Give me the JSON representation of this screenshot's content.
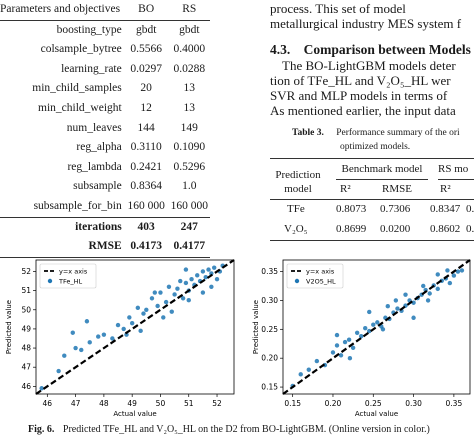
{
  "param_table": {
    "headers": [
      "Parameters and objectives",
      "BO",
      "RS"
    ],
    "rows": [
      [
        "boosting_type",
        "gbdt",
        "gbdt"
      ],
      [
        "colsample_bytree",
        "0.5566",
        "0.4000"
      ],
      [
        "learning_rate",
        "0.0297",
        "0.0288"
      ],
      [
        "min_child_samples",
        "20",
        "13"
      ],
      [
        "min_child_weight",
        "12",
        "13"
      ],
      [
        "num_leaves",
        "144",
        "149"
      ],
      [
        "reg_alpha",
        "0.3110",
        "0.1090"
      ],
      [
        "reg_lambda",
        "0.2421",
        "0.5296"
      ],
      [
        "subsample",
        "0.8364",
        "1.0"
      ],
      [
        "subsample_for_bin",
        "160 000",
        "160 000"
      ]
    ],
    "iterations": [
      "iterations",
      "403",
      "247"
    ],
    "rmse": [
      "RMSE",
      "0.4173",
      "0.4177"
    ]
  },
  "body_text": {
    "line1": "process. This set of model",
    "line2": "metallurgical industry MES system f",
    "section_num": "4.3.",
    "section_title": "Comparison between Models",
    "p1": "The BO-LightGBM models deter",
    "p2": "tion of TFe_HL and V₂O₅_HL wer",
    "p3": "SVR and MLP models in terms of",
    "p4": "As mentioned earlier, the input data"
  },
  "perf_table": {
    "label": "Table 3.",
    "caption1": "Performance summary of the ori",
    "caption2": "optimized models.",
    "col_model": "Prediction model",
    "group1": "Benchmark model",
    "group2": "RS mo",
    "sub1": "R²",
    "sub2": "RMSE",
    "sub3": "R²",
    "sub4": "RMSE",
    "rows": [
      [
        "TFe",
        "0.8073",
        "0.7306",
        "0.8347",
        "0.6"
      ],
      [
        "V₂O₅",
        "0.8699",
        "0.0200",
        "0.8602",
        "0.0"
      ]
    ]
  },
  "figure_caption": {
    "label": "Fig. 6.",
    "text": "Predicted TFe_HL and V₂O₅_HL on the D2 from BO-LightGBM. (Online version in color.)"
  },
  "chart_data": [
    {
      "type": "scatter",
      "xlabel": "Actual value",
      "ylabel": "Predicted value",
      "xlim": [
        45.6,
        52.6
      ],
      "ylim": [
        45.6,
        52.6
      ],
      "xticks": [
        46,
        47,
        48,
        49,
        50,
        51,
        52
      ],
      "yticks": [
        46,
        47,
        48,
        49,
        50,
        51,
        52
      ],
      "legend_position": "top-left",
      "series": [
        {
          "name": "y=x axis",
          "kind": "line",
          "color": "#000000",
          "style": "dashed",
          "x": [
            45.6,
            52.6
          ],
          "y": [
            45.6,
            52.6
          ]
        },
        {
          "name": "TFe_HL",
          "kind": "scatter",
          "color": "#1f77b4",
          "x": [
            45.8,
            46.4,
            46.6,
            47.0,
            47.2,
            47.5,
            47.8,
            48.0,
            48.3,
            48.5,
            48.7,
            48.9,
            49.0,
            49.2,
            49.4,
            49.5,
            49.7,
            49.9,
            50.0,
            50.2,
            50.3,
            50.5,
            50.6,
            50.8,
            50.9,
            51.0,
            51.1,
            51.2,
            51.3,
            51.4,
            51.5,
            51.6,
            51.7,
            51.8,
            51.9,
            52.0,
            52.1,
            52.2,
            50.4,
            50.7,
            49.8,
            51.0,
            51.5,
            48.8,
            47.4,
            46.9,
            50.1,
            51.8,
            49.3,
            50.9
          ],
          "y": [
            45.9,
            46.8,
            47.6,
            48.0,
            47.9,
            48.3,
            48.6,
            48.7,
            48.5,
            49.2,
            49.0,
            49.6,
            49.3,
            50.1,
            49.8,
            50.0,
            50.6,
            50.2,
            50.9,
            50.4,
            51.2,
            50.8,
            51.1,
            50.6,
            51.4,
            51.0,
            51.6,
            51.3,
            51.8,
            51.5,
            52.0,
            51.7,
            52.1,
            51.9,
            52.2,
            51.6,
            52.0,
            52.3,
            49.9,
            51.5,
            50.9,
            50.5,
            50.9,
            48.7,
            49.4,
            48.8,
            49.6,
            51.2,
            48.9,
            52.1
          ]
        }
      ]
    },
    {
      "type": "scatter",
      "xlabel": "Actual value",
      "ylabel": "Predicted value",
      "xlim": [
        0.138,
        0.37
      ],
      "ylim": [
        0.138,
        0.37
      ],
      "xticks": [
        0.15,
        0.2,
        0.25,
        0.3,
        0.35
      ],
      "yticks": [
        0.15,
        0.2,
        0.25,
        0.3,
        0.35
      ],
      "legend_position": "top-left",
      "series": [
        {
          "name": "y=x axis",
          "kind": "line",
          "color": "#000000",
          "style": "dashed",
          "x": [
            0.138,
            0.37
          ],
          "y": [
            0.138,
            0.37
          ]
        },
        {
          "name": "V2O5_HL",
          "kind": "scatter",
          "color": "#1f77b4",
          "x": [
            0.15,
            0.16,
            0.17,
            0.18,
            0.19,
            0.2,
            0.205,
            0.21,
            0.215,
            0.22,
            0.225,
            0.23,
            0.235,
            0.24,
            0.245,
            0.25,
            0.255,
            0.26,
            0.265,
            0.27,
            0.275,
            0.28,
            0.285,
            0.29,
            0.295,
            0.3,
            0.305,
            0.31,
            0.315,
            0.32,
            0.325,
            0.33,
            0.335,
            0.34,
            0.345,
            0.35,
            0.355,
            0.36,
            0.245,
            0.262,
            0.278,
            0.3,
            0.318,
            0.33,
            0.221,
            0.205,
            0.29,
            0.312,
            0.342,
            0.268
          ],
          "y": [
            0.152,
            0.172,
            0.18,
            0.195,
            0.188,
            0.21,
            0.222,
            0.205,
            0.228,
            0.232,
            0.218,
            0.244,
            0.238,
            0.252,
            0.247,
            0.258,
            0.262,
            0.255,
            0.27,
            0.268,
            0.279,
            0.286,
            0.282,
            0.291,
            0.3,
            0.296,
            0.304,
            0.31,
            0.318,
            0.312,
            0.326,
            0.32,
            0.334,
            0.338,
            0.33,
            0.343,
            0.35,
            0.352,
            0.28,
            0.25,
            0.3,
            0.27,
            0.3,
            0.345,
            0.2,
            0.24,
            0.31,
            0.325,
            0.352,
            0.29
          ]
        }
      ]
    }
  ]
}
